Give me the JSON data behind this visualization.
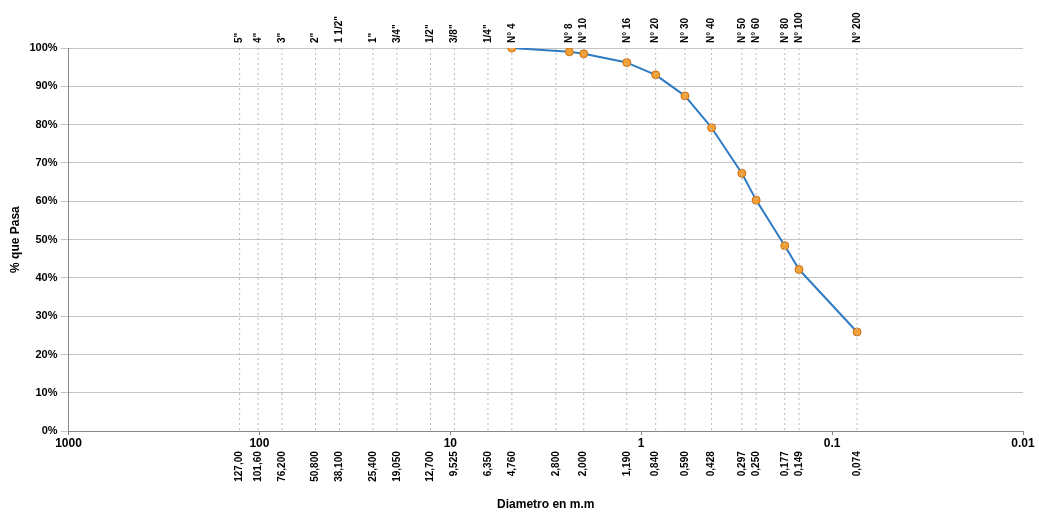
{
  "chart_data": {
    "type": "line",
    "xlabel": "Diametro en m.m",
    "ylabel": "% que Pasa",
    "x": [
      4.76,
      2.38,
      2.0,
      1.19,
      0.84,
      0.59,
      0.428,
      0.297,
      0.25,
      0.177,
      0.149,
      0.074
    ],
    "series": [
      {
        "color": "#2e7bc4",
        "colors": [
          "#f5a033",
          "#f5a033",
          "#f5a033",
          "#f5a033",
          "#f5a033",
          "#f5a033",
          "#f5a033",
          "#f5a033",
          "#f5a033",
          "#f5a033",
          "#f5a033",
          "#f5a033"
        ],
        "values": [
          100,
          99.0,
          98.5,
          96.2,
          93.0,
          87.5,
          79.2,
          67.3,
          60.3,
          48.4,
          42.2,
          25.9
        ]
      }
    ],
    "log": "x",
    "xlim": [
      1000,
      0.01
    ],
    "xticks": [
      1000,
      100,
      10,
      1,
      0.1,
      0.01
    ],
    "ylim": [
      0,
      100
    ],
    "yticks": [
      {
        "value": 0,
        "label": "0%"
      },
      {
        "value": 10,
        "label": "10%"
      },
      {
        "value": 20,
        "label": "20%"
      },
      {
        "value": 30,
        "label": "30%"
      },
      {
        "value": 40,
        "label": "40%"
      },
      {
        "value": 50,
        "label": "50%"
      },
      {
        "value": 60,
        "label": "60%"
      },
      {
        "value": 70,
        "label": "70%"
      },
      {
        "value": 80,
        "label": "80%"
      },
      {
        "value": 90,
        "label": "90%"
      },
      {
        "value": 100,
        "label": "100%"
      }
    ],
    "ref_lines": [
      {
        "axis": "x",
        "value": 127,
        "label": "127,00"
      },
      {
        "axis": "x",
        "value": 101.6,
        "label": "101,60"
      },
      {
        "axis": "x",
        "value": 76.2,
        "label": "76,200"
      },
      {
        "axis": "x",
        "value": 50.8,
        "label": "50,800"
      },
      {
        "axis": "x",
        "value": 38.1,
        "label": "38,100"
      },
      {
        "axis": "x",
        "value": 25.4,
        "label": "25,400"
      },
      {
        "axis": "x",
        "value": 19.05,
        "label": "19,050"
      },
      {
        "axis": "x",
        "value": 12.7,
        "label": "12,700"
      },
      {
        "axis": "x",
        "value": 9.525,
        "label": "9,525"
      },
      {
        "axis": "x",
        "value": 6.35,
        "label": "6,350"
      },
      {
        "axis": "x",
        "value": 4.76,
        "label": "4,760"
      },
      {
        "axis": "x",
        "value": 2.8,
        "label": "2,800"
      },
      {
        "axis": "x",
        "value": 2.0,
        "label": "2,000"
      },
      {
        "axis": "x",
        "value": 1.19,
        "label": "1,190"
      },
      {
        "axis": "x",
        "value": 0.84,
        "label": "0,840"
      },
      {
        "axis": "x",
        "value": 0.59,
        "label": "0,590"
      },
      {
        "axis": "x",
        "value": 0.428,
        "label": "0,428"
      },
      {
        "axis": "x",
        "value": 0.297,
        "label": "0,297"
      },
      {
        "axis": "x",
        "value": 0.25,
        "label": "0,250"
      },
      {
        "axis": "x",
        "value": 0.177,
        "label": "0,177"
      },
      {
        "axis": "x",
        "value": 0.149,
        "label": "0,149"
      },
      {
        "axis": "x",
        "value": 0.074,
        "label": "0,074"
      }
    ],
    "annotations": [
      {
        "text": "5\"",
        "x": 127,
        "y": 100
      },
      {
        "text": "4\"",
        "x": 101.6,
        "y": 100
      },
      {
        "text": "3\"",
        "x": 76.2,
        "y": 100
      },
      {
        "text": "2\"",
        "x": 50.8,
        "y": 100
      },
      {
        "text": "1 1/2\"",
        "x": 38.1,
        "y": 100
      },
      {
        "text": "1\"",
        "x": 25.4,
        "y": 100
      },
      {
        "text": "3/4\"",
        "x": 19.05,
        "y": 100
      },
      {
        "text": "1/2\"",
        "x": 12.7,
        "y": 100
      },
      {
        "text": "3/8\"",
        "x": 9.525,
        "y": 100
      },
      {
        "text": "1/4\"",
        "x": 6.35,
        "y": 100
      },
      {
        "text": "N° 4",
        "x": 4.76,
        "y": 100
      },
      {
        "text": "N° 8",
        "x": 2.38,
        "y": 100
      },
      {
        "text": "N° 10",
        "x": 2.0,
        "y": 100
      },
      {
        "text": "N° 16",
        "x": 1.19,
        "y": 100
      },
      {
        "text": "N° 20",
        "x": 0.84,
        "y": 100
      },
      {
        "text": "N° 30",
        "x": 0.59,
        "y": 100
      },
      {
        "text": "N° 40",
        "x": 0.428,
        "y": 100
      },
      {
        "text": "N° 50",
        "x": 0.297,
        "y": 100
      },
      {
        "text": "N° 60",
        "x": 0.25,
        "y": 100
      },
      {
        "text": "N° 80",
        "x": 0.177,
        "y": 100
      },
      {
        "text": "N° 100",
        "x": 0.149,
        "y": 100
      },
      {
        "text": "N° 200",
        "x": 0.074,
        "y": 100
      }
    ],
    "grid": "y",
    "marker": "circle",
    "line_style": "solid",
    "legend": false
  }
}
